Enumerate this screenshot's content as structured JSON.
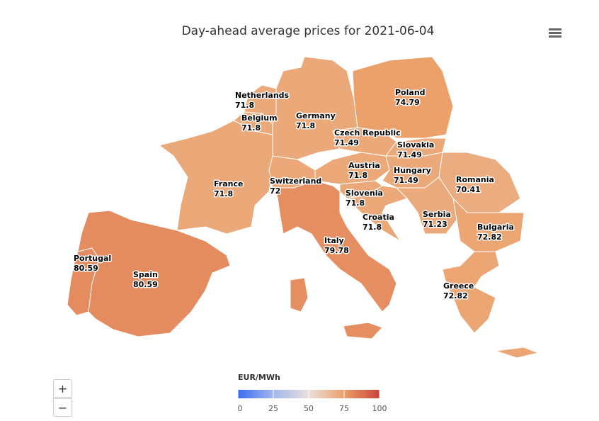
{
  "map": {
    "type": "choropleth",
    "title": "Day-ahead average prices for 2021-06-04",
    "regions": [
      {
        "name": "Portugal",
        "value": 80.59
      },
      {
        "name": "Spain",
        "value": 80.59
      },
      {
        "name": "France",
        "value": 71.8
      },
      {
        "name": "Belgium",
        "value": 71.8
      },
      {
        "name": "Netherlands",
        "value": 71.8
      },
      {
        "name": "Germany",
        "value": 71.8
      },
      {
        "name": "Switzerland",
        "value": 72
      },
      {
        "name": "Italy",
        "value": 79.78
      },
      {
        "name": "Austria",
        "value": 71.8
      },
      {
        "name": "Czech Republic",
        "value": 71.49
      },
      {
        "name": "Poland",
        "value": 74.79
      },
      {
        "name": "Slovakia",
        "value": 71.49
      },
      {
        "name": "Hungary",
        "value": 71.49
      },
      {
        "name": "Slovenia",
        "value": 71.8
      },
      {
        "name": "Croatia",
        "value": 71.8
      },
      {
        "name": "Serbia",
        "value": 71.23
      },
      {
        "name": "Romania",
        "value": 70.41
      },
      {
        "name": "Bulgaria",
        "value": 72.82
      },
      {
        "name": "Greece",
        "value": 72.82
      }
    ],
    "color_axis": {
      "title": "EUR/MWh",
      "min": 0,
      "max": 100,
      "ticks": [
        0,
        25,
        50,
        75,
        100
      ],
      "colors": [
        "#3a6cf4",
        "#a3b6ec",
        "#e8e0dc",
        "#eca06a",
        "#c9443a"
      ]
    },
    "zoom_controls": [
      "+",
      "−"
    ]
  }
}
